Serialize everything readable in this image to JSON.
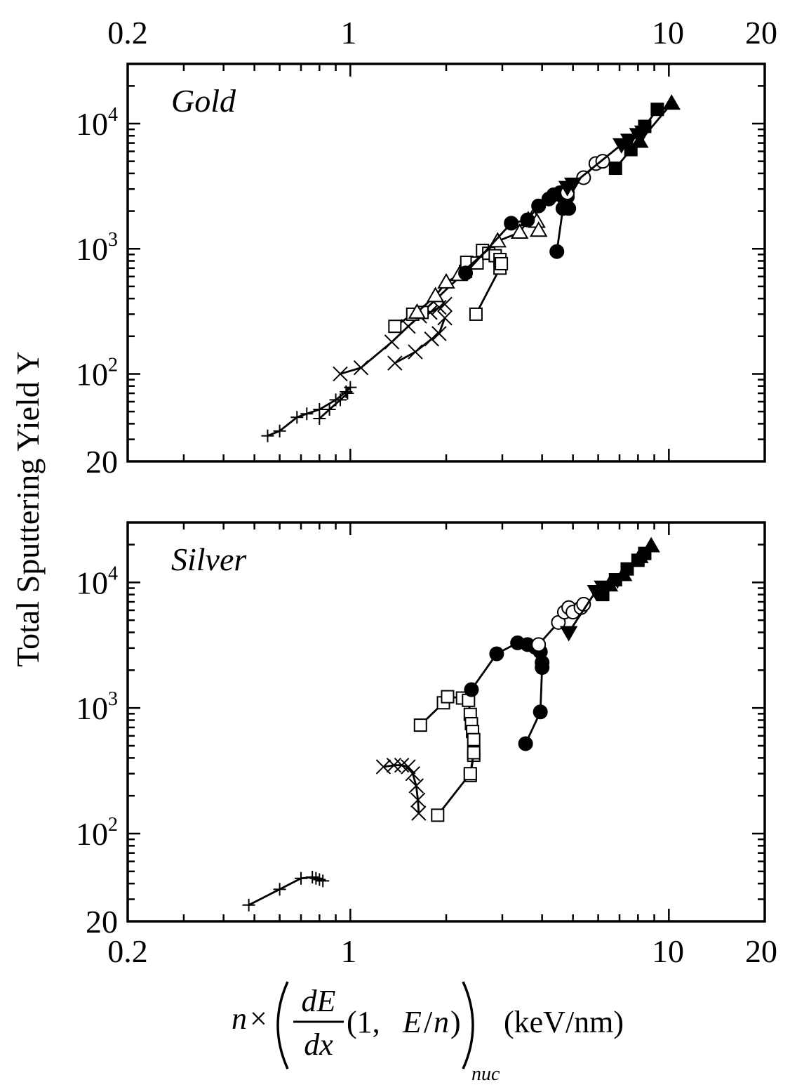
{
  "figure": {
    "ylabel": "Total Sputtering Yield Y",
    "xlabel": {
      "n": "n",
      "times": "×",
      "num": "dE",
      "den": "dx",
      "args_open": "(1, ",
      "args_var": "E",
      "args_slash": "/",
      "args_n": "n",
      "args_close": ")",
      "sub": "nuc",
      "units": "(keV/nm)"
    },
    "x_tick_labels": [
      "0.2",
      "1",
      "10",
      "20"
    ],
    "colors": {
      "ink": "#000000",
      "background": "#ffffff"
    }
  },
  "chart_data": [
    {
      "type": "scatter",
      "title": "Gold",
      "xscale": "log",
      "yscale": "log",
      "xlim": [
        0.2,
        20
      ],
      "ylim": [
        20,
        30000
      ],
      "y_tick_labels": [
        "20",
        "10^2",
        "10^3",
        "10^4"
      ],
      "series": [
        {
          "marker": "plus",
          "filled": false,
          "curves": [
            {
              "x": [
                0.55,
                0.6,
                0.68,
                0.73,
                0.8,
                0.9,
                0.97,
                1.0
              ],
              "y": [
                32,
                35,
                45,
                48,
                52,
                62,
                72,
                78
              ]
            },
            {
              "x": [
                0.8,
                0.86,
                0.93,
                0.98
              ],
              "y": [
                44,
                52,
                62,
                70
              ]
            }
          ]
        },
        {
          "marker": "cross",
          "filled": false,
          "curves": [
            {
              "x": [
                0.93,
                1.08,
                1.35,
                1.52,
                1.65,
                1.78,
                1.9,
                1.98
              ],
              "y": [
                100,
                112,
                180,
                240,
                290,
                310,
                340,
                360
              ]
            },
            {
              "x": [
                1.38,
                1.6,
                1.8,
                1.9,
                1.98
              ],
              "y": [
                122,
                150,
                190,
                210,
                280
              ]
            }
          ]
        },
        {
          "marker": "square",
          "filled": false,
          "curves": [
            {
              "x": [
                1.38,
                1.57,
                1.68,
                2.3,
                2.32,
                2.5,
                2.6,
                2.72,
                2.85,
                2.95
              ],
              "y": [
                240,
                300,
                310,
                660,
                780,
                770,
                970,
                920,
                880,
                820
              ]
            },
            {
              "x": [
                2.48,
                2.95,
                2.98
              ],
              "y": [
                300,
                700,
                760
              ]
            }
          ]
        },
        {
          "marker": "triangle-up",
          "filled": false,
          "curves": [
            {
              "x": [
                1.62,
                1.85,
                2.0,
                2.2,
                2.9,
                3.4,
                3.62,
                3.75,
                3.85,
                3.9
              ],
              "y": [
                310,
                420,
                540,
                620,
                1150,
                1350,
                1700,
                1800,
                1650,
                1400
              ]
            }
          ]
        },
        {
          "marker": "circle",
          "filled": true,
          "curves": [
            {
              "x": [
                2.3,
                3.2,
                3.6,
                3.9,
                4.2,
                4.35,
                4.55,
                4.7,
                4.85
              ],
              "y": [
                640,
                1600,
                1700,
                2200,
                2500,
                2700,
                2800,
                2500,
                2100
              ]
            },
            {
              "x": [
                4.45,
                4.65,
                4.8
              ],
              "y": [
                950,
                2100,
                2600
              ]
            }
          ]
        },
        {
          "marker": "circle",
          "filled": false,
          "curves": [
            {
              "x": [
                4.8,
                5.4,
                5.9,
                6.2
              ],
              "y": [
                2800,
                3700,
                4800,
                5000
              ]
            }
          ]
        },
        {
          "marker": "triangle-down",
          "filled": true,
          "curves": [
            {
              "x": [
                4.8,
                5.0,
                7.1,
                7.5,
                8.0,
                8.3
              ],
              "y": [
                3100,
                3300,
                6800,
                7400,
                8200,
                8600
              ]
            }
          ]
        },
        {
          "marker": "square",
          "filled": true,
          "curves": [
            {
              "x": [
                6.8,
                7.6,
                8.4,
                9.2
              ],
              "y": [
                4400,
                6200,
                9500,
                13000
              ]
            }
          ]
        },
        {
          "marker": "triangle-up",
          "filled": true,
          "curves": [
            {
              "x": [
                8.1,
                10.2
              ],
              "y": [
                7200,
                14500
              ]
            }
          ]
        }
      ]
    },
    {
      "type": "scatter",
      "title": "Silver",
      "xscale": "log",
      "yscale": "log",
      "xlim": [
        0.2,
        20
      ],
      "ylim": [
        20,
        30000
      ],
      "y_tick_labels": [
        "20",
        "10^2",
        "10^3",
        "10^4"
      ],
      "series": [
        {
          "marker": "plus",
          "filled": false,
          "curves": [
            {
              "x": [
                0.48,
                0.6,
                0.7,
                0.76,
                0.78,
                0.8,
                0.82
              ],
              "y": [
                27,
                36,
                44,
                45,
                44,
                43,
                42
              ]
            }
          ]
        },
        {
          "marker": "cross",
          "filled": false,
          "curves": [
            {
              "x": [
                1.27,
                1.37,
                1.45,
                1.52,
                1.57,
                1.61,
                1.63,
                1.64
              ],
              "y": [
                340,
                350,
                350,
                340,
                300,
                240,
                185,
                145
              ]
            }
          ]
        },
        {
          "marker": "square",
          "filled": false,
          "curves": [
            {
              "x": [
                1.66,
                1.96,
                2.02,
                2.25,
                2.35,
                2.38,
                2.4,
                2.42,
                2.44,
                2.44,
                2.38
              ],
              "y": [
                730,
                1100,
                1230,
                1200,
                1150,
                890,
                750,
                650,
                560,
                420,
                290
              ]
            },
            {
              "x": [
                1.88,
                2.38,
                2.44
              ],
              "y": [
                140,
                300,
                440
              ]
            }
          ]
        },
        {
          "marker": "circle",
          "filled": true,
          "curves": [
            {
              "x": [
                2.4,
                2.88,
                3.35,
                3.6,
                3.8,
                3.95,
                4.0
              ],
              "y": [
                1400,
                2700,
                3300,
                3200,
                3050,
                2800,
                2300
              ]
            },
            {
              "x": [
                3.55,
                3.95,
                4.0
              ],
              "y": [
                520,
                930,
                2100
              ]
            }
          ]
        },
        {
          "marker": "circle",
          "filled": false,
          "curves": [
            {
              "x": [
                3.9,
                4.5,
                4.7,
                4.85,
                5.0,
                5.3,
                5.4
              ],
              "y": [
                3200,
                4800,
                5800,
                6300,
                5800,
                6300,
                6700
              ]
            }
          ]
        },
        {
          "marker": "triangle-down",
          "filled": true,
          "curves": [
            {
              "x": [
                4.85,
                5.9,
                6.2,
                6.9
              ],
              "y": [
                4000,
                8500,
                9200,
                10500
              ]
            }
          ]
        },
        {
          "marker": "square",
          "filled": true,
          "curves": [
            {
              "x": [
                6.2,
                6.8,
                7.4,
                8.0,
                8.4
              ],
              "y": [
                8000,
                10500,
                12800,
                15000,
                17000
              ]
            }
          ]
        },
        {
          "marker": "triangle-up",
          "filled": true,
          "curves": [
            {
              "x": [
                6.5,
                7.2,
                8.1,
                8.8
              ],
              "y": [
                9500,
                11500,
                16000,
                19500
              ]
            }
          ]
        }
      ]
    }
  ]
}
